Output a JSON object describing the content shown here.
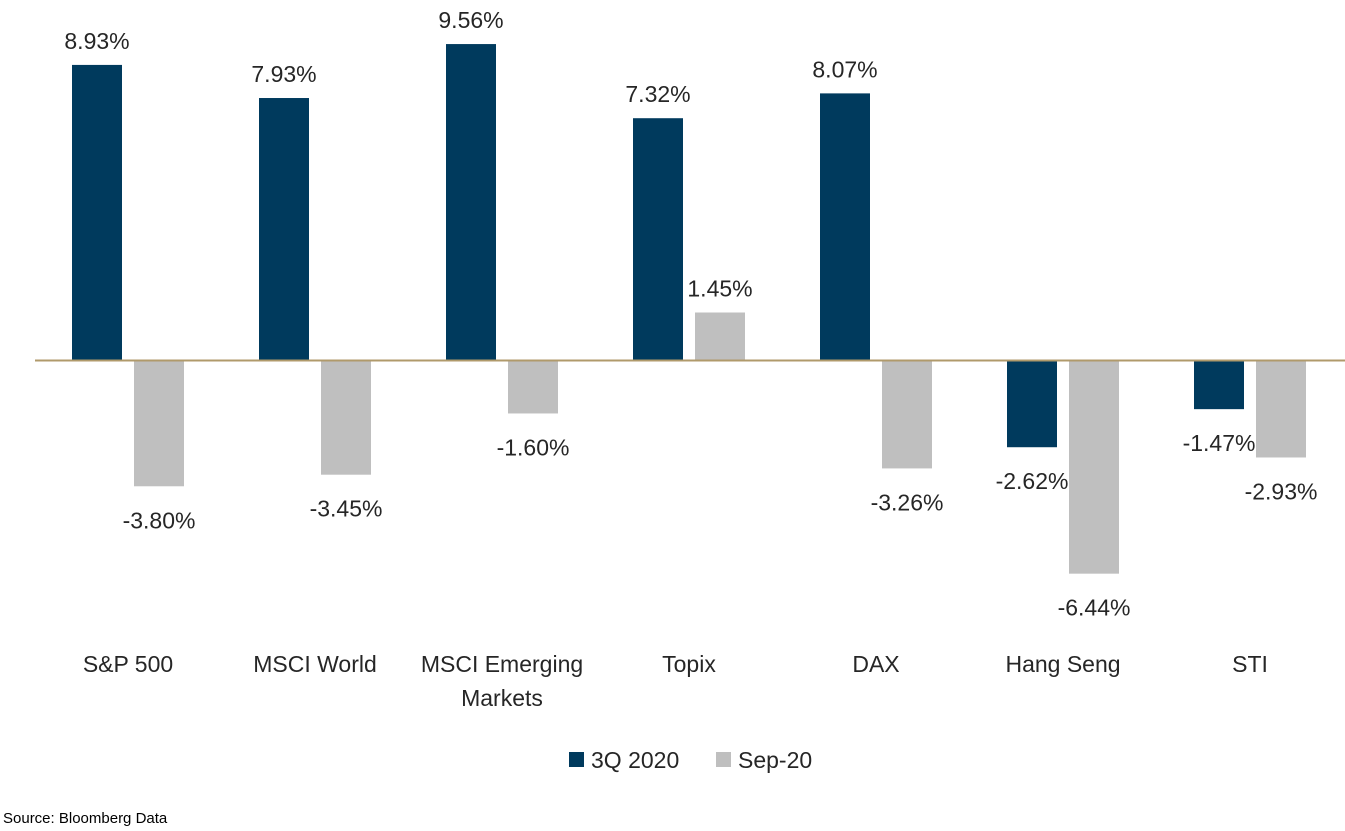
{
  "chart_data": {
    "type": "bar",
    "categories": [
      [
        "S&P 500"
      ],
      [
        "MSCI World"
      ],
      [
        "MSCI Emerging",
        "Markets"
      ],
      [
        "Topix"
      ],
      [
        "DAX"
      ],
      [
        "Hang Seng"
      ],
      [
        "STI"
      ]
    ],
    "series": [
      {
        "name": "3Q 2020",
        "color": "#003A5D",
        "values": [
          8.93,
          7.93,
          9.56,
          7.32,
          8.07,
          -2.62,
          -1.47
        ],
        "labels": [
          "8.93%",
          "7.93%",
          "9.56%",
          "7.32%",
          "8.07%",
          "-2.62%",
          "-1.47%"
        ]
      },
      {
        "name": "Sep-20",
        "color": "#BFBFBF",
        "values": [
          -3.8,
          -3.45,
          -1.6,
          1.45,
          -3.26,
          -6.44,
          -2.93
        ],
        "labels": [
          "-3.80%",
          "-3.45%",
          "-1.60%",
          "1.45%",
          "-3.26%",
          "-6.44%",
          "-2.93%"
        ]
      }
    ],
    "axis_line_color": "#B09A6B",
    "legend_position": "bottom",
    "grid": false
  },
  "source": "Source: Bloomberg Data"
}
